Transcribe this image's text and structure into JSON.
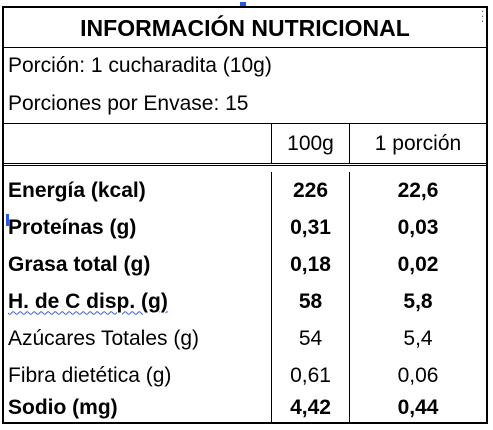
{
  "title": "INFORMACIÓN NUTRICIONAL",
  "serving_size": "Porción: 1 cucharadita (10g)",
  "servings_per_container": "Porciones por Envase: 15",
  "columns": {
    "per_100g": "100g",
    "per_portion": "1 porción"
  },
  "rows": [
    {
      "name": "Energía (kcal)",
      "per_100g": "226",
      "per_portion": "22,6",
      "bold": true
    },
    {
      "name": "Proteínas (g)",
      "per_100g": "0,31",
      "per_portion": "0,03",
      "bold": true
    },
    {
      "name": "Grasa total (g)",
      "per_100g": "0,18",
      "per_portion": "0,02",
      "bold": true
    },
    {
      "name": "H. de C disp. (g)",
      "per_100g": "58",
      "per_portion": "5,8",
      "bold": true
    },
    {
      "name": "Azúcares Totales (g)",
      "per_100g": "54",
      "per_portion": "5,4",
      "bold": false
    },
    {
      "name": "Fibra dietética (g)",
      "per_100g": "0,61",
      "per_portion": "0,06",
      "bold": false
    },
    {
      "name": "Sodio (mg)",
      "per_100g": "4,42",
      "per_portion": "0,44",
      "bold": true
    }
  ]
}
